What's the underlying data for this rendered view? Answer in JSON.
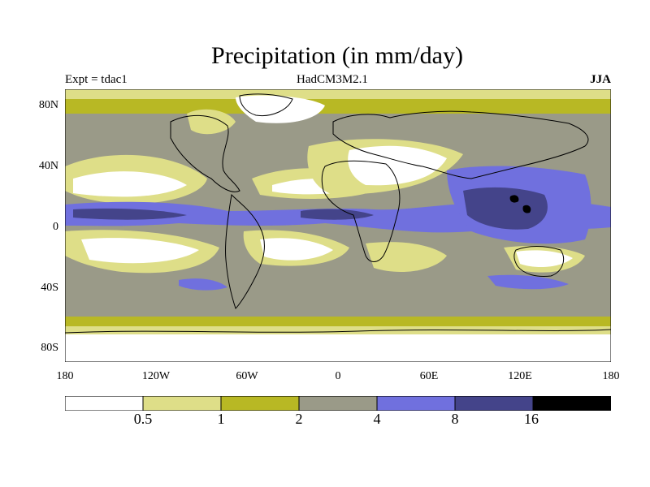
{
  "title": "Precipitation (in mm/day)",
  "experiment": "Expt = tdac1",
  "model": "HadCM3M2.1",
  "season": "JJA",
  "lat_labels": [
    "80N",
    "40N",
    "0",
    "40S",
    "80S"
  ],
  "lon_labels": [
    "180",
    "120W",
    "60W",
    "0",
    "60E",
    "120E",
    "180"
  ],
  "colorbar": {
    "colors": [
      "#ffffff",
      "#dede88",
      "#b8b824",
      "#9a9a88",
      "#7070de",
      "#44448a",
      "#000000"
    ],
    "levels": [
      "0.5",
      "1",
      "2",
      "4",
      "8",
      "16"
    ]
  }
}
